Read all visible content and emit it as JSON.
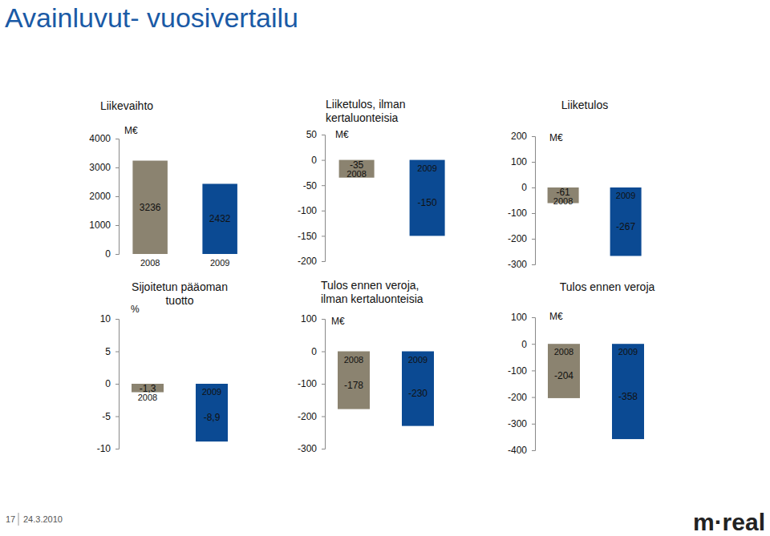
{
  "page": {
    "title": "Avainluvut- vuosivertailu",
    "page_number": "17",
    "date": "24.3.2010",
    "logo": "m·real"
  },
  "chart_data": [
    {
      "type": "bar",
      "title": "Liikevaihto",
      "y_label": "M€",
      "categories": [
        "2008",
        "2009"
      ],
      "values": [
        3236,
        2432
      ],
      "colors": [
        "#8b8370",
        "#0b4a93"
      ],
      "ylim": [
        0,
        4000
      ],
      "yticks": [
        0,
        1000,
        2000,
        3000,
        4000
      ],
      "data_labels": true
    },
    {
      "type": "bar",
      "title": "Liiketulos, ilman kertaluonteisia",
      "y_label": "M€",
      "categories": [
        "2008",
        "2009"
      ],
      "values": [
        -35,
        -150
      ],
      "colors": [
        "#8b8370",
        "#0b4a93"
      ],
      "ylim": [
        -200,
        50
      ],
      "yticks": [
        -200,
        -150,
        -100,
        -50,
        0,
        50
      ],
      "data_labels": true
    },
    {
      "type": "bar",
      "title": "Liiketulos",
      "y_label": "M€",
      "categories": [
        "2008",
        "2009"
      ],
      "values": [
        -61,
        -267
      ],
      "colors": [
        "#8b8370",
        "#0b4a93"
      ],
      "ylim": [
        -300,
        200
      ],
      "yticks": [
        -300,
        -200,
        -100,
        0,
        100,
        200
      ],
      "data_labels": true
    },
    {
      "type": "bar",
      "title": "Sijoitetun pääoman tuotto",
      "y_label": "%",
      "categories": [
        "2008",
        "2009"
      ],
      "values": [
        -1.3,
        -8.9
      ],
      "value_labels": [
        "-1,3",
        "-8,9"
      ],
      "colors": [
        "#8b8370",
        "#0b4a93"
      ],
      "ylim": [
        -10,
        10
      ],
      "yticks": [
        -10,
        -5,
        0,
        5,
        10
      ],
      "data_labels": true
    },
    {
      "type": "bar",
      "title": "Tulos ennen veroja, ilman kertaluonteisia",
      "y_label": "M€",
      "categories": [
        "2008",
        "2009"
      ],
      "values": [
        -178,
        -230
      ],
      "colors": [
        "#8b8370",
        "#0b4a93"
      ],
      "ylim": [
        -300,
        100
      ],
      "yticks": [
        -300,
        -200,
        -100,
        0,
        100
      ],
      "data_labels": true
    },
    {
      "type": "bar",
      "title": "Tulos ennen veroja",
      "y_label": "M€",
      "categories": [
        "2008",
        "2009"
      ],
      "values": [
        -204,
        -358
      ],
      "colors": [
        "#8b8370",
        "#0b4a93"
      ],
      "ylim": [
        -400,
        100
      ],
      "yticks": [
        -400,
        -300,
        -200,
        -100,
        0,
        100
      ],
      "data_labels": true
    }
  ]
}
